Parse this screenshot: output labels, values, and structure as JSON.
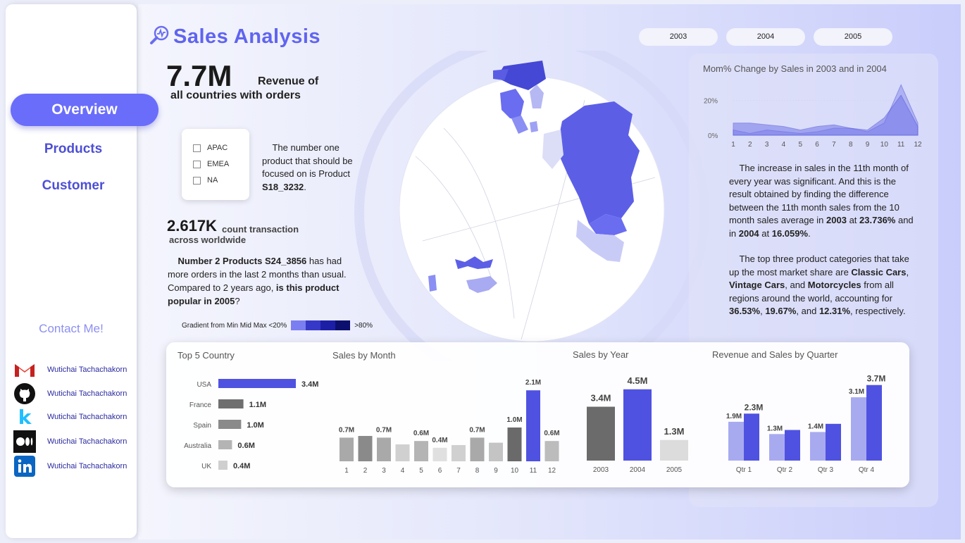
{
  "app": {
    "title": "Sales Analysis"
  },
  "nav": {
    "overview": "Overview",
    "products": "Products",
    "customer": "Customer",
    "contact": "Contact Me!"
  },
  "socials": [
    {
      "name": "Wutichai Tachachakorn",
      "icon": "gmail-icon"
    },
    {
      "name": "Wutichai Tachachakorn",
      "icon": "github-icon"
    },
    {
      "name": "Wutichai Tachachakorn",
      "icon": "kaggle-icon"
    },
    {
      "name": "Wutichai Tachachakorn",
      "icon": "medium-icon"
    },
    {
      "name": "Wutichai Tachachakorn",
      "icon": "linkedin-icon"
    }
  ],
  "years": [
    "2003",
    "2004",
    "2005"
  ],
  "kpi": {
    "revenue": "7.7M",
    "revenue_label_1": "Revenue of",
    "revenue_label_2": "all countries with orders",
    "count": "2.617K",
    "count_label_1": "count transaction",
    "count_label_2": "across worldwide"
  },
  "regions": [
    "APAC",
    "EMEA",
    "NA"
  ],
  "insights": {
    "top_product_pre": "The number one product that should be focused on is Product",
    "top_product_code": "S18_3232",
    "top_product_post": ".",
    "p2_bold1": "Number 2 Products S24_3856",
    "p2_text1": " has had more orders in the last 2 months than usual. Compared to 2 years ago, ",
    "p2_bold2": "is this product popular in 2005",
    "p2_text2": "?",
    "p3_text1": "The increase in sales in the 11th month of every year was significant. And this is the result obtained by finding the difference between the 11th month sales from the 10 month sales average in ",
    "p3_b1": "2003",
    "p3_text2": " at ",
    "p3_b2": "23.736%",
    "p3_text3": " and in ",
    "p3_b3": "2004",
    "p3_text4": " at ",
    "p3_b4": "16.059%",
    "p3_text5": ".",
    "p4_text1": "The top three product categories that take up the most market share are ",
    "p4_b1": "Classic Cars",
    "p4_text2": ", ",
    "p4_b2": "Vintage Cars",
    "p4_text3": ", and ",
    "p4_b3": "Motorcycles",
    "p4_text4": " from all regions around the world, accounting for ",
    "p4_b4": "36.53%",
    "p4_text5": ", ",
    "p4_b5": "19.67%",
    "p4_text6": ", and ",
    "p4_b6": "12.31%",
    "p4_text7": ", respectively."
  },
  "legend": {
    "label": "Gradient from Min Mid Max <20%",
    "end": ">80%",
    "colors": [
      "#7b7ef0",
      "#3638c8",
      "#1c1ea6",
      "#0d0f6e"
    ]
  },
  "colors": {
    "accent": "#4f52e0",
    "dark": "#6b6b6b",
    "light": "#dcdcdc"
  },
  "chart_data": [
    {
      "type": "area",
      "title": "Mom% Change by Sales in 2003 and in 2004",
      "x": [
        1,
        2,
        3,
        4,
        5,
        6,
        7,
        8,
        9,
        10,
        11,
        12
      ],
      "yticks": [
        "0%",
        "20%"
      ],
      "ylim": [
        0,
        30
      ],
      "series": [
        {
          "values": [
            3,
            1,
            3,
            2,
            1,
            2,
            4,
            4,
            2,
            7,
            29,
            7
          ]
        },
        {
          "values": [
            7,
            7,
            6,
            5,
            3,
            5,
            6,
            4,
            3,
            10,
            23,
            5
          ]
        }
      ]
    },
    {
      "type": "bar",
      "title": "Top 5 Country",
      "orientation": "horizontal",
      "categories": [
        "USA",
        "France",
        "Spain",
        "Australia",
        "UK"
      ],
      "values": [
        3.4,
        1.1,
        1.0,
        0.6,
        0.4
      ],
      "labels": [
        "3.4M",
        "1.1M",
        "1.0M",
        "0.6M",
        "0.4M"
      ],
      "colors": [
        "#4f52e0",
        "#6f6f6f",
        "#8a8a8a",
        "#b4b4b4",
        "#cfcfcf"
      ]
    },
    {
      "type": "bar",
      "title": "Sales by Month",
      "categories": [
        "1",
        "2",
        "3",
        "4",
        "5",
        "6",
        "7",
        "8",
        "9",
        "10",
        "11",
        "12"
      ],
      "values": [
        0.7,
        0.75,
        0.7,
        0.5,
        0.6,
        0.4,
        0.48,
        0.7,
        0.55,
        1.0,
        2.1,
        0.6
      ],
      "labels": [
        "0.7M",
        "",
        "0.7M",
        "",
        "0.6M",
        "0.4M",
        "",
        "0.7M",
        "",
        "1.0M",
        "2.1M",
        "0.6M"
      ],
      "colors": [
        "#a9a9a9",
        "#8a8a8a",
        "#a9a9a9",
        "#d0d0d0",
        "#b4b4b4",
        "#e0e0e0",
        "#d0d0d0",
        "#a9a9a9",
        "#c4c4c4",
        "#6a6a6a",
        "#4f52e0",
        "#bcbcbc"
      ]
    },
    {
      "type": "bar",
      "title": "Sales by Year",
      "categories": [
        "2003",
        "2004",
        "2005"
      ],
      "values": [
        3.4,
        4.5,
        1.3
      ],
      "labels": [
        "3.4M",
        "4.5M",
        "1.3M"
      ],
      "colors": [
        "#6b6b6b",
        "#4f52e0",
        "#dcdcdc"
      ]
    },
    {
      "type": "bar",
      "title": "Revenue and Sales by Quarter",
      "categories": [
        "Qtr 1",
        "Qtr 2",
        "Qtr 3",
        "Qtr 4"
      ],
      "series": [
        {
          "values": [
            1.9,
            1.3,
            1.4,
            3.1
          ],
          "labels": [
            "1.9M",
            "1.3M",
            "1.4M",
            "3.1M"
          ],
          "color": "#a8aaf0"
        },
        {
          "values": [
            2.3,
            1.5,
            1.8,
            3.7
          ],
          "labels": [
            "2.3M",
            "",
            "",
            "3.7M"
          ],
          "color": "#4f52e0"
        }
      ]
    }
  ]
}
